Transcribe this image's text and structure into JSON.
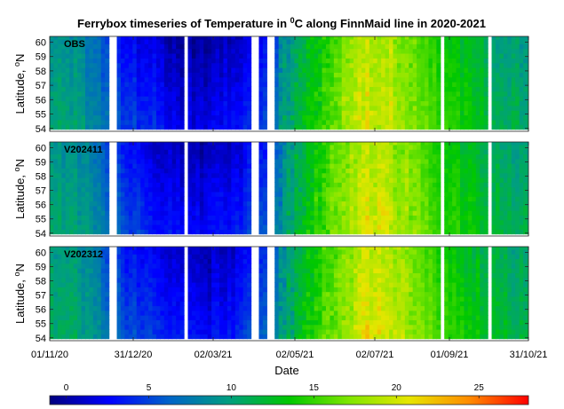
{
  "chart_data": {
    "type": "heatmap",
    "title_main": "Ferrybox timeseries of Temperature in ",
    "title_sup": "0",
    "title_rest": "C along FinnMaid line in 2020-2021",
    "xlabel": "Date",
    "ylabel_main": "Latitude, ",
    "ylabel_sup": "o",
    "ylabel_rest": "N",
    "x_ticks": [
      "01/11/20",
      "31/12/20",
      "02/03/21",
      "02/05/21",
      "02/07/21",
      "01/09/21",
      "31/10/21"
    ],
    "y_ticks": [
      54,
      55,
      56,
      57,
      58,
      59,
      60
    ],
    "ylim": [
      53.8,
      60.4
    ],
    "xlim_days": [
      0,
      364
    ],
    "clim": [
      -1,
      28
    ],
    "colorbar_ticks": [
      0,
      5,
      10,
      15,
      20,
      25
    ],
    "colormap": [
      "#00007f",
      "#0000ff",
      "#0064c8",
      "#009f7f",
      "#00c800",
      "#7fe600",
      "#e6e600",
      "#ff8c00",
      "#ff0000"
    ],
    "gaps_days": [
      [
        -5,
        1
      ],
      [
        46,
        52
      ],
      [
        101,
        106
      ],
      [
        153,
        159
      ],
      [
        165,
        172
      ],
      [
        298,
        301
      ],
      [
        332,
        335
      ]
    ],
    "seasonal_temperature": {
      "day": [
        0,
        20,
        40,
        60,
        80,
        100,
        120,
        140,
        160,
        180,
        200,
        220,
        240,
        260,
        280,
        300,
        320,
        340,
        364
      ],
      "temp": [
        11.0,
        10.0,
        8.0,
        5.2,
        4.0,
        2.4,
        2.5,
        3.5,
        5.5,
        10.0,
        14.0,
        17.5,
        20.5,
        19.5,
        17.0,
        15.0,
        13.5,
        12.0,
        11.0
      ]
    },
    "panels": [
      {
        "label": "OBS"
      },
      {
        "label": "V202411"
      },
      {
        "label": "V202312"
      }
    ]
  }
}
